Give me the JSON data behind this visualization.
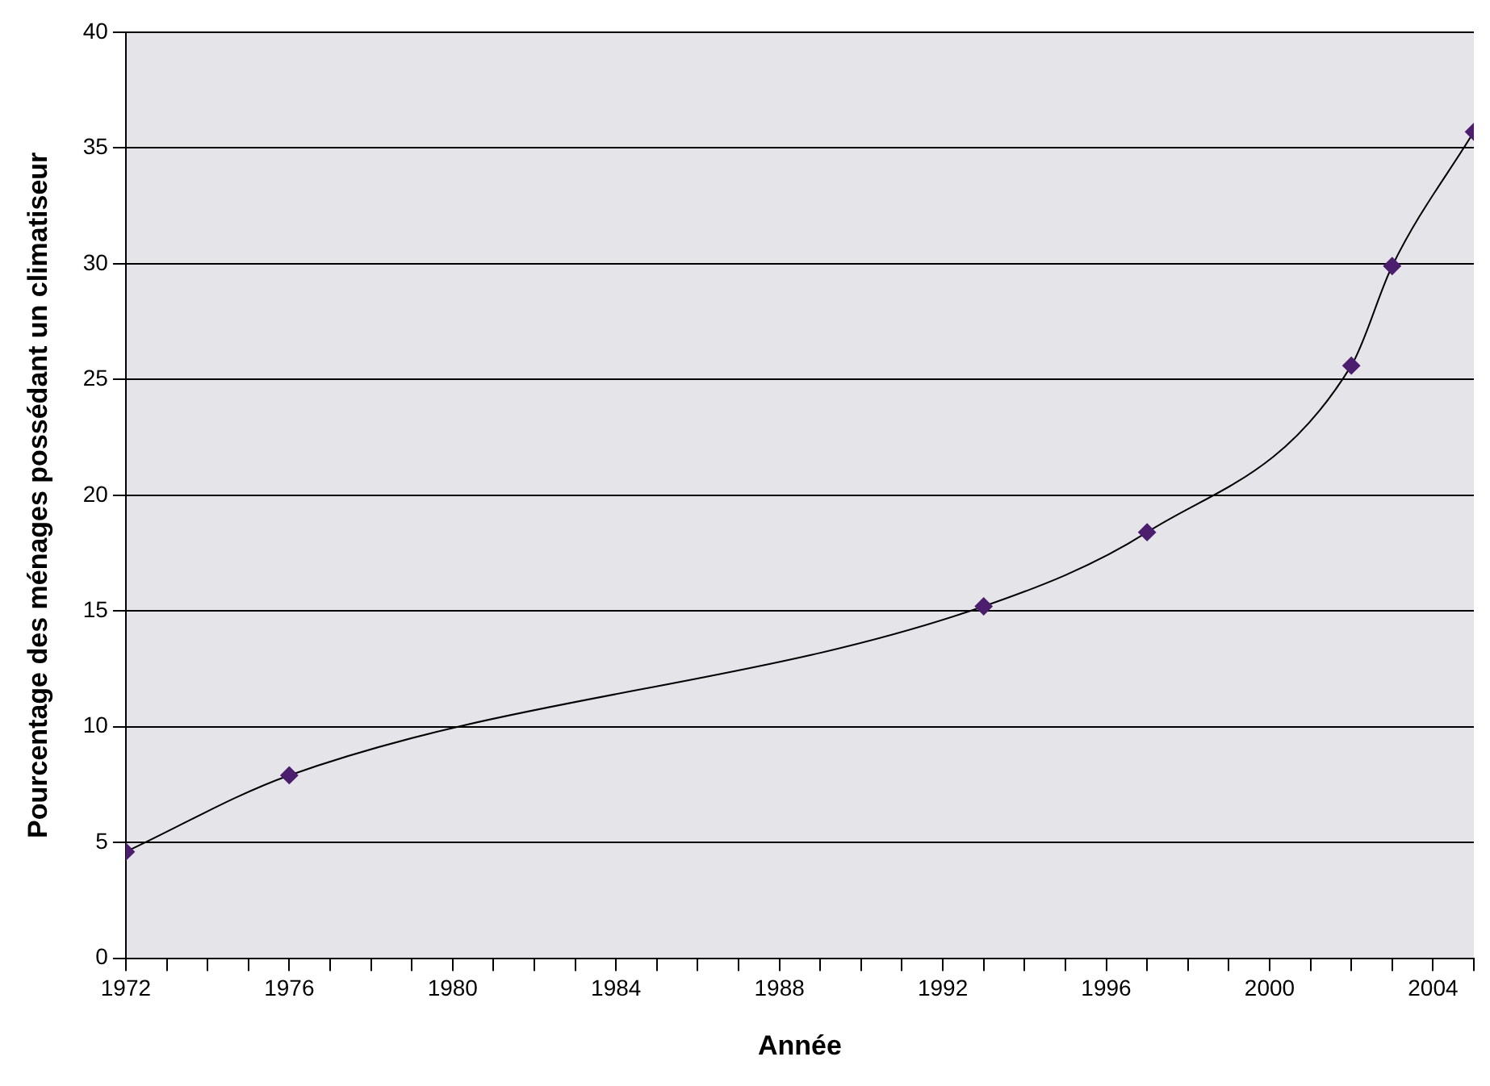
{
  "chart_data": {
    "type": "line",
    "xlabel": "Année",
    "ylabel": "Pourcentage des ménages possédant un climatiseur",
    "x": [
      1972,
      1976,
      1993,
      1997,
      2002,
      2003,
      2005
    ],
    "series": [
      {
        "color": "#4b1e6e",
        "values": [
          4.6,
          7.9,
          15.2,
          18.4,
          25.6,
          29.9,
          35.7
        ]
      }
    ],
    "xlim": [
      1972,
      2005
    ],
    "xticks": [
      1972,
      {
        "value": 1973,
        "label": null
      },
      {
        "value": 1974,
        "label": null
      },
      {
        "value": 1975,
        "label": null
      },
      1976,
      {
        "value": 1977,
        "label": null
      },
      {
        "value": 1978,
        "label": null
      },
      {
        "value": 1979,
        "label": null
      },
      1980,
      {
        "value": 1981,
        "label": null
      },
      {
        "value": 1982,
        "label": null
      },
      {
        "value": 1983,
        "label": null
      },
      1984,
      {
        "value": 1985,
        "label": null
      },
      {
        "value": 1986,
        "label": null
      },
      {
        "value": 1987,
        "label": null
      },
      1988,
      {
        "value": 1989,
        "label": null
      },
      {
        "value": 1990,
        "label": null
      },
      {
        "value": 1991,
        "label": null
      },
      1992,
      {
        "value": 1993,
        "label": null
      },
      {
        "value": 1994,
        "label": null
      },
      {
        "value": 1995,
        "label": null
      },
      1996,
      {
        "value": 1997,
        "label": null
      },
      {
        "value": 1998,
        "label": null
      },
      {
        "value": 1999,
        "label": null
      },
      2000,
      {
        "value": 2001,
        "label": null
      },
      {
        "value": 2002,
        "label": null
      },
      {
        "value": 2003,
        "label": null
      },
      2004,
      {
        "value": 2005,
        "label": null
      }
    ],
    "ylim": [
      0,
      40
    ],
    "yticks": [
      0,
      5,
      10,
      15,
      20,
      25,
      30,
      35,
      40
    ],
    "grid": "y",
    "marker": "diamond",
    "line_style": "solid",
    "legend": false
  }
}
